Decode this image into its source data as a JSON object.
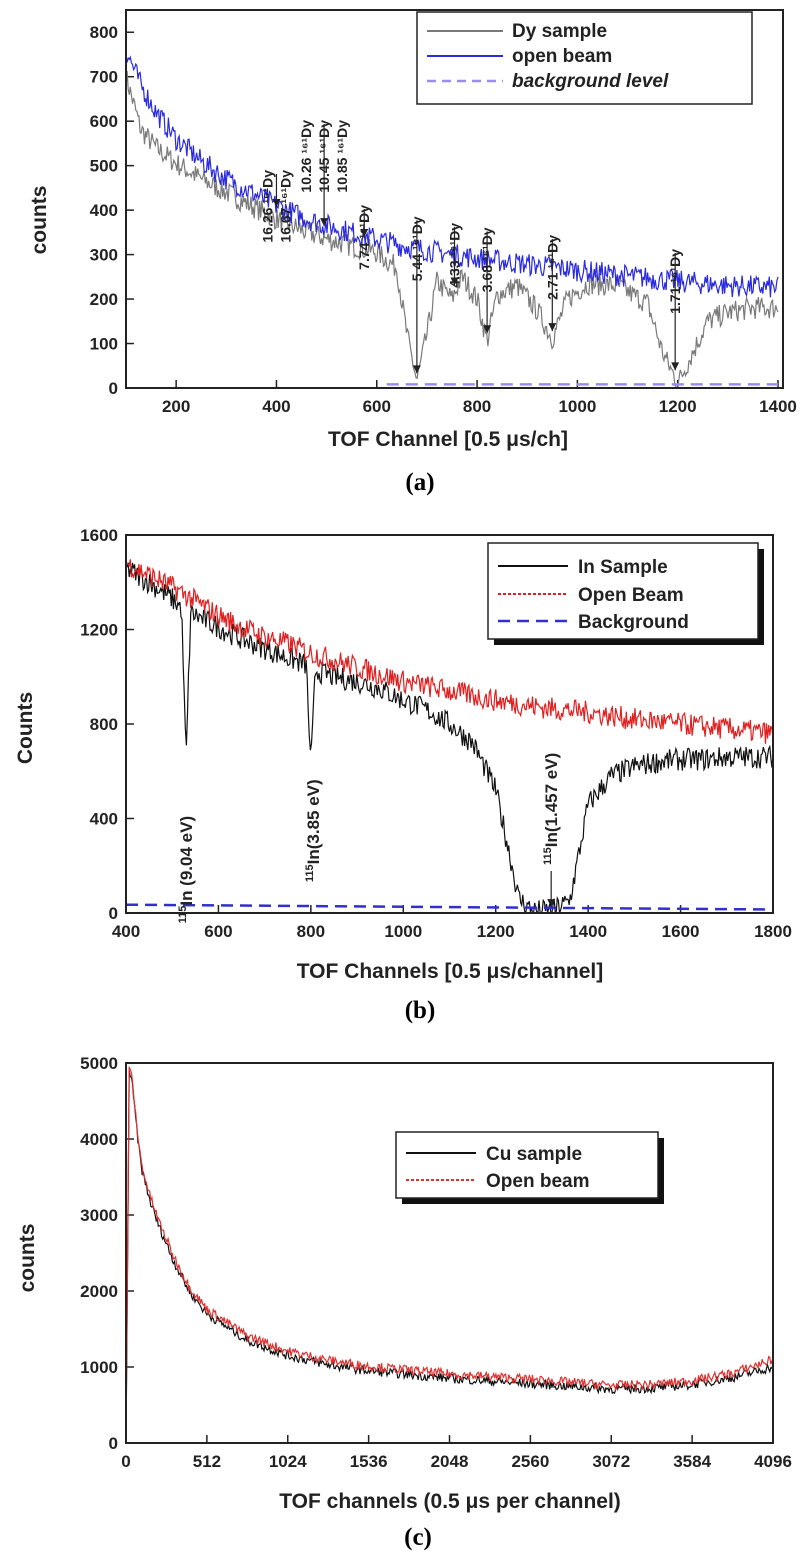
{
  "chart_data": [
    {
      "type": "line",
      "caption": "(a)",
      "xlabel": "TOF Channel [0.5 μs/ch]",
      "ylabel": "counts",
      "xlim": [
        100,
        1410
      ],
      "ylim": [
        0,
        850
      ],
      "xticks": [
        200,
        400,
        600,
        800,
        1000,
        1200,
        1400
      ],
      "yticks": [
        0,
        100,
        200,
        300,
        400,
        500,
        600,
        700,
        800
      ],
      "legend_position": "top-right",
      "series": [
        {
          "name": "Dy sample",
          "color": "#7a7a7a",
          "style": "solid",
          "x": [
            100,
            130,
            160,
            200,
            250,
            300,
            350,
            400,
            450,
            500,
            550,
            600,
            640,
            660,
            680,
            700,
            720,
            750,
            770,
            800,
            820,
            840,
            880,
            920,
            950,
            980,
            1020,
            1080,
            1140,
            1170,
            1200,
            1230,
            1260,
            1300,
            1350,
            1400
          ],
          "y": [
            700,
            580,
            540,
            505,
            470,
            440,
            410,
            380,
            355,
            335,
            320,
            305,
            270,
            120,
            15,
            120,
            240,
            200,
            250,
            200,
            105,
            210,
            230,
            175,
            110,
            200,
            235,
            230,
            190,
            80,
            10,
            80,
            150,
            170,
            180,
            180
          ]
        },
        {
          "name": "open beam",
          "color": "#2a2ae0",
          "style": "solid",
          "x": [
            100,
            130,
            160,
            200,
            250,
            300,
            350,
            400,
            450,
            500,
            550,
            600,
            650,
            700,
            750,
            800,
            850,
            900,
            950,
            1000,
            1050,
            1100,
            1150,
            1200,
            1250,
            1300,
            1350,
            1400
          ],
          "y": [
            760,
            680,
            620,
            560,
            510,
            470,
            440,
            410,
            385,
            365,
            350,
            335,
            320,
            310,
            300,
            292,
            285,
            278,
            272,
            265,
            258,
            252,
            246,
            240,
            235,
            230,
            228,
            225
          ]
        },
        {
          "name": "background level",
          "color": "#9a8cf0",
          "style": "dashed",
          "x": [
            620,
            1400
          ],
          "y": [
            8,
            8
          ]
        }
      ],
      "annotations": [
        {
          "label": "16.26 ¹⁶¹Dy",
          "x": 400
        },
        {
          "label": "16.67 ¹⁶¹Dy",
          "x": 400
        },
        {
          "label": "10.26 ¹⁶¹Dy",
          "x": 495
        },
        {
          "label": "10.45 ¹⁶¹Dy",
          "x": 495
        },
        {
          "label": "10.85 ¹⁶¹Dy",
          "x": 495
        },
        {
          "label": "7.74 ¹⁶¹Dy",
          "x": 575
        },
        {
          "label": "5.44 ¹⁶¹Dy",
          "x": 680
        },
        {
          "label": "4.33 ¹⁶¹Dy",
          "x": 755
        },
        {
          "label": "3.68 ¹⁶¹Dy",
          "x": 820
        },
        {
          "label": "2.71 ¹⁶¹Dy",
          "x": 950
        },
        {
          "label": "1.71 ¹⁶¹Dy",
          "x": 1195
        }
      ]
    },
    {
      "type": "line",
      "caption": "(b)",
      "xlabel": "TOF Channels [0.5 μs/channel]",
      "ylabel": "Counts",
      "xlim": [
        400,
        1800
      ],
      "ylim": [
        0,
        1600
      ],
      "xticks": [
        400,
        600,
        800,
        1000,
        1200,
        1400,
        1600,
        1800
      ],
      "yticks": [
        0,
        400,
        800,
        1200,
        1600
      ],
      "legend_position": "top-right",
      "series": [
        {
          "name": "In Sample",
          "color": "#111111",
          "style": "solid",
          "x": [
            400,
            450,
            500,
            520,
            530,
            540,
            560,
            600,
            650,
            700,
            750,
            790,
            800,
            810,
            820,
            850,
            900,
            950,
            1000,
            1050,
            1100,
            1150,
            1200,
            1230,
            1250,
            1280,
            1320,
            1360,
            1380,
            1400,
            1450,
            1500,
            1550,
            1600,
            1650,
            1700,
            1750,
            1800
          ],
          "y": [
            1460,
            1400,
            1330,
            1290,
            650,
            1270,
            1250,
            1210,
            1160,
            1120,
            1080,
            1050,
            620,
            1030,
            1020,
            1000,
            980,
            950,
            900,
            860,
            800,
            720,
            520,
            250,
            60,
            10,
            8,
            50,
            250,
            460,
            580,
            620,
            640,
            650,
            650,
            660,
            660,
            660
          ]
        },
        {
          "name": "Open Beam",
          "color": "#e02020",
          "style": "dashed",
          "x": [
            400,
            450,
            500,
            550,
            600,
            650,
            700,
            750,
            800,
            850,
            900,
            950,
            1000,
            1100,
            1200,
            1300,
            1400,
            1500,
            1600,
            1700,
            1800
          ],
          "y": [
            1480,
            1430,
            1380,
            1320,
            1260,
            1210,
            1170,
            1140,
            1100,
            1070,
            1040,
            1010,
            980,
            940,
            900,
            870,
            850,
            820,
            800,
            780,
            760
          ]
        },
        {
          "name": "Background",
          "color": "#3030d0",
          "style": "dashed",
          "x": [
            400,
            1800
          ],
          "y": [
            35,
            15
          ]
        }
      ],
      "annotations": [
        {
          "label_iso": "115",
          "label": "In (9.04 eV)",
          "x": 530
        },
        {
          "label_iso": "115",
          "label": "In(3.85 eV)",
          "x": 805
        },
        {
          "label_iso": "115",
          "label": "In(1.457 eV)",
          "x": 1320
        }
      ]
    },
    {
      "type": "line",
      "caption": "(c)",
      "xlabel": "TOF channels (0.5 μs per channel)",
      "ylabel": "counts",
      "xlim": [
        0,
        4096
      ],
      "ylim": [
        0,
        5000
      ],
      "xticks": [
        0,
        512,
        1024,
        1536,
        2048,
        2560,
        3072,
        3584,
        4096
      ],
      "yticks": [
        0,
        1000,
        2000,
        3000,
        4000,
        5000
      ],
      "legend_position": "top-right",
      "series": [
        {
          "name": "Cu sample",
          "color": "#111111",
          "style": "solid",
          "x": [
            0,
            20,
            40,
            60,
            80,
            100,
            150,
            200,
            300,
            400,
            512,
            768,
            1024,
            1280,
            1536,
            2048,
            2560,
            3072,
            3328,
            3584,
            3840,
            4096
          ],
          "y": [
            0,
            4900,
            4700,
            4300,
            3900,
            3600,
            3200,
            2900,
            2400,
            2000,
            1700,
            1350,
            1150,
            1030,
            950,
            850,
            780,
            710,
            720,
            770,
            860,
            1000
          ]
        },
        {
          "name": "Open beam",
          "color": "#e03030",
          "style": "dashed",
          "x": [
            0,
            20,
            40,
            60,
            80,
            100,
            150,
            200,
            300,
            400,
            512,
            768,
            1024,
            1280,
            1536,
            2048,
            2560,
            3072,
            3328,
            3584,
            3840,
            4096
          ],
          "y": [
            0,
            5000,
            4750,
            4350,
            3950,
            3650,
            3260,
            2960,
            2460,
            2060,
            1760,
            1410,
            1210,
            1090,
            1010,
            910,
            840,
            760,
            770,
            820,
            920,
            1100
          ]
        }
      ]
    }
  ]
}
